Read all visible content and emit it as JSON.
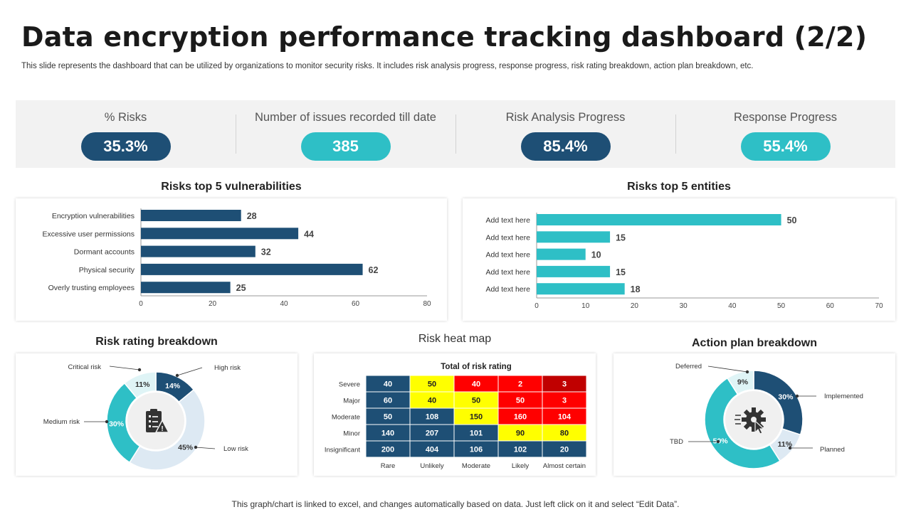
{
  "header": {
    "title": "Data encryption performance tracking dashboard (2/2)",
    "subtitle": "This slide represents the dashboard that can be utilized by organizations to monitor security risks. It includes risk analysis progress, response progress, risk rating breakdown, action plan breakdown, etc."
  },
  "kpis": [
    {
      "label": "% Risks",
      "value": "35.3%",
      "color": "#1e4f75"
    },
    {
      "label": "Number of issues recorded till date",
      "value": "385",
      "color": "#2ebfc6"
    },
    {
      "label": "Risk Analysis Progress",
      "value": "85.4%",
      "color": "#1e4f75"
    },
    {
      "label": "Response Progress",
      "value": "55.4%",
      "color": "#2ebfc6"
    }
  ],
  "sections": {
    "vulnerabilities": "Risks top 5 vulnerabilities",
    "entities": "Risks top 5 entities",
    "rating": "Risk rating breakdown",
    "heatmap": "Risk heat map",
    "action": "Action plan breakdown"
  },
  "chart_data": [
    {
      "type": "bar",
      "orientation": "horizontal",
      "title": "Risks top 5 vulnerabilities",
      "categories": [
        "Encryption vulnerabilities",
        "Excessive user permissions",
        "Dormant accounts",
        "Physical security",
        "Overly trusting employees"
      ],
      "values": [
        28,
        44,
        32,
        62,
        25
      ],
      "xlim": [
        0,
        80
      ],
      "xticks": [
        0,
        20,
        40,
        60,
        80
      ],
      "color": "#1e4f75"
    },
    {
      "type": "bar",
      "orientation": "horizontal",
      "title": "Risks top 5 entities",
      "categories": [
        "Add text here",
        "Add text here",
        "Add text here",
        "Add text here",
        "Add text here"
      ],
      "values": [
        50,
        15,
        10,
        15,
        18
      ],
      "xlim": [
        0,
        70
      ],
      "xticks": [
        0,
        10,
        20,
        30,
        40,
        50,
        60,
        70
      ],
      "color": "#2ebfc6"
    },
    {
      "type": "pie",
      "variant": "donut",
      "title": "Risk rating breakdown",
      "slices": [
        {
          "label": "High risk",
          "value": 14,
          "text": "14%",
          "color": "#1e4f75"
        },
        {
          "label": "Low risk",
          "value": 45,
          "text": "45%",
          "color": "#dde9f3"
        },
        {
          "label": "Medium risk",
          "value": 30,
          "text": "30%",
          "color": "#2ebfc6"
        },
        {
          "label": "Critical risk",
          "value": 11,
          "text": "11%",
          "color": "#dff4f6"
        }
      ]
    },
    {
      "type": "heatmap",
      "title": "Total of risk rating",
      "section_title": "Risk heat map",
      "rows": [
        "Severe",
        "Major",
        "Moderate",
        "Minor",
        "Insignificant"
      ],
      "cols": [
        "Rare",
        "Unlikely",
        "Moderate",
        "Likely",
        "Almost certain"
      ],
      "values": [
        [
          40,
          50,
          40,
          2,
          3
        ],
        [
          60,
          40,
          50,
          50,
          3
        ],
        [
          50,
          108,
          150,
          160,
          104
        ],
        [
          140,
          207,
          101,
          90,
          80
        ],
        [
          200,
          404,
          106,
          102,
          20
        ]
      ],
      "levels": [
        [
          "blue",
          "yellow",
          "red",
          "red",
          "darkred"
        ],
        [
          "blue",
          "yellow",
          "yellow",
          "red",
          "red"
        ],
        [
          "blue",
          "blue",
          "yellow",
          "red",
          "red"
        ],
        [
          "blue",
          "blue",
          "blue",
          "yellow",
          "yellow"
        ],
        [
          "blue",
          "blue",
          "blue",
          "blue",
          "blue"
        ]
      ],
      "colors": {
        "blue": "#1e4f75",
        "yellow": "#ffff00",
        "red": "#ff0000",
        "darkred": "#c00000"
      },
      "text_colors": {
        "blue": "#ffffff",
        "yellow": "#222222",
        "red": "#ffffff",
        "darkred": "#ffffff"
      }
    },
    {
      "type": "pie",
      "variant": "donut",
      "title": "Action plan breakdown",
      "slices": [
        {
          "label": "Implemented",
          "value": 30,
          "text": "30%",
          "color": "#1e4f75"
        },
        {
          "label": "Planned",
          "value": 11,
          "text": "11%",
          "color": "#dde9f3"
        },
        {
          "label": "TBD",
          "value": 50,
          "text": "50%",
          "color": "#2ebfc6"
        },
        {
          "label": "Deferred",
          "value": 9,
          "text": "9%",
          "color": "#dff4f6"
        }
      ]
    }
  ],
  "footer": "This graph/chart is linked to excel, and changes automatically based on data. Just left click on it and select “Edit Data”.",
  "icons": {
    "rating_center": "clipboard-warning-icon",
    "action_center": "gear-cursor-icon"
  }
}
